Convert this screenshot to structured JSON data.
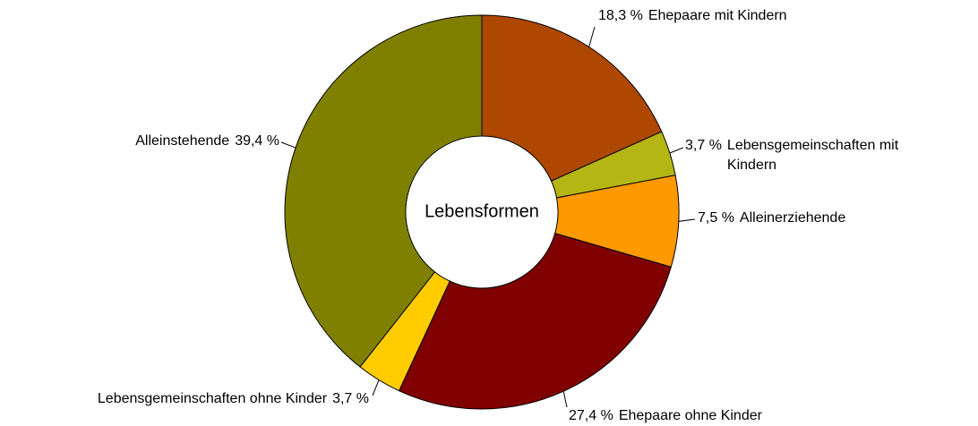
{
  "chart_data": {
    "type": "donut",
    "title": "Lebensformen",
    "categories": [
      "Ehepaare mit Kindern",
      "Lebensgemeinschaften mit Kindern",
      "Alleinerziehende",
      "Ehepaare ohne Kinder",
      "Lebensgemeinschaften ohne Kinder",
      "Alleinstehende"
    ],
    "values": [
      18.3,
      3.7,
      7.5,
      27.4,
      3.7,
      39.4
    ],
    "value_labels": [
      "18,3 %",
      "3,7 %",
      "7,5 %",
      "27,4 %",
      "3,7 %",
      "39,4 %"
    ],
    "colors": [
      "#ae4700",
      "#b5b513",
      "#ff9900",
      "#800000",
      "#ffcc00",
      "#808000"
    ]
  }
}
